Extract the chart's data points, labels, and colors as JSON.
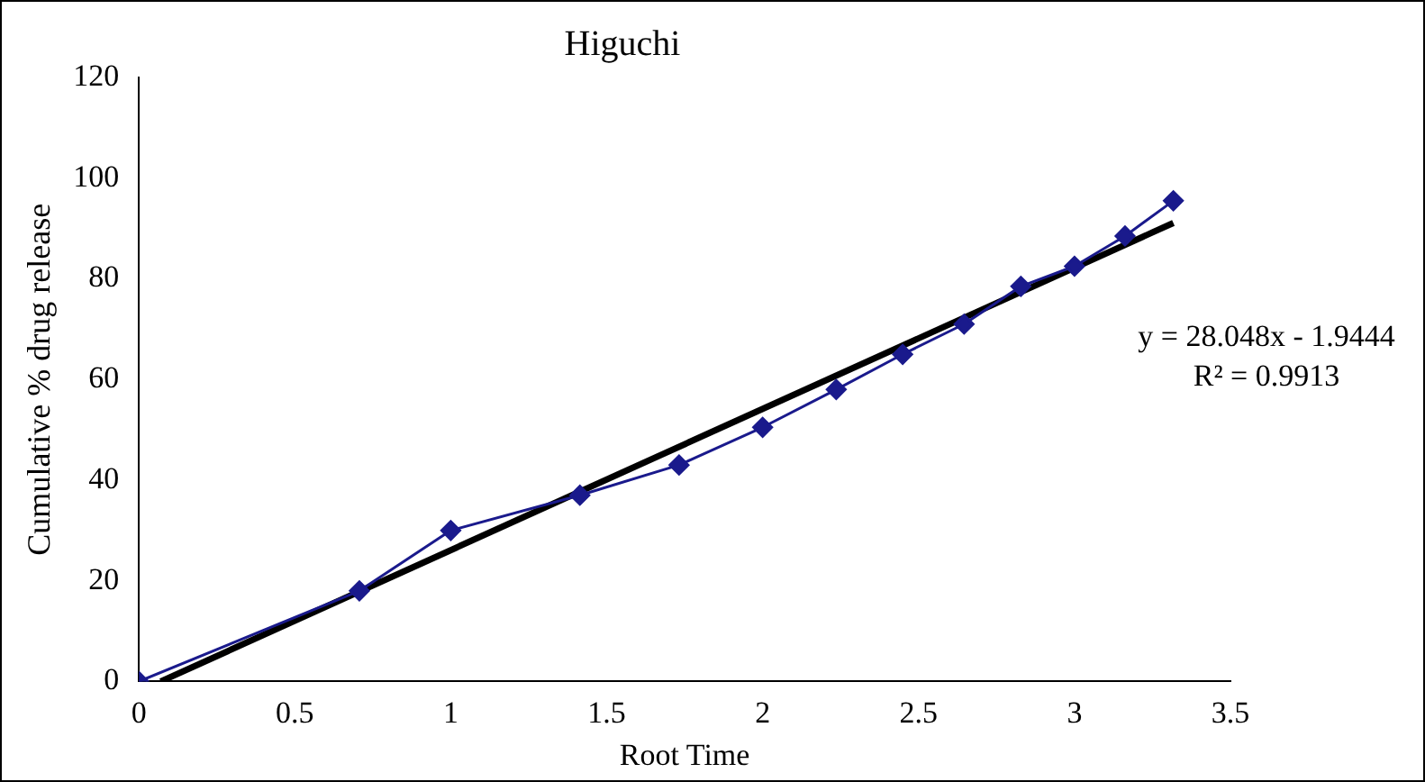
{
  "chart_data": {
    "type": "line",
    "title": "Higuchi",
    "xlabel": "Root Time",
    "ylabel": "Cumulative % drug release",
    "x": [
      0,
      0.707,
      1,
      1.414,
      1.732,
      2,
      2.236,
      2.449,
      2.646,
      2.828,
      3,
      3.162,
      3.317
    ],
    "series": [
      {
        "color": "#1a1a8c",
        "values": [
          0,
          18,
          30,
          37,
          43,
          50.5,
          58,
          65,
          71,
          78.5,
          82.5,
          88.5,
          95.5
        ],
        "marker": "diamond"
      },
      {
        "type": "line",
        "color": "#000000",
        "x": [
          0.07,
          3.317
        ],
        "values": [
          0,
          91.1
        ],
        "marker": "none"
      }
    ],
    "xlim": [
      0,
      3.5
    ],
    "xticks": [
      0,
      0.5,
      1,
      1.5,
      2,
      2.5,
      3,
      3.5
    ],
    "ylim": [
      0,
      120
    ],
    "yticks": [
      0,
      20,
      40,
      60,
      80,
      100,
      120
    ],
    "grid": false,
    "legend": false,
    "annotations": [
      "y = 28.048x - 1.9444",
      "R² = 0.9913"
    ]
  }
}
